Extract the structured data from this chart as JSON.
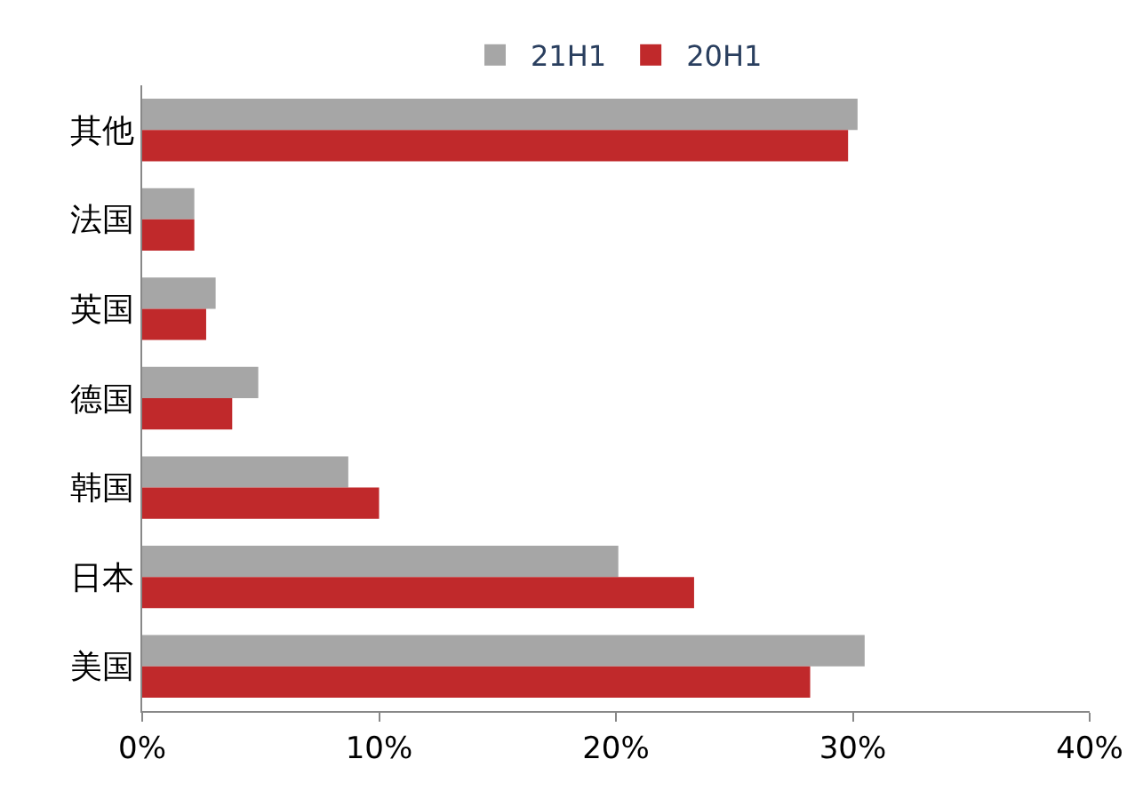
{
  "chart_data": {
    "type": "bar",
    "orientation": "horizontal",
    "categories": [
      "其他",
      "法国",
      "英国",
      "德国",
      "韩国",
      "日本",
      "美国"
    ],
    "series": [
      {
        "name": "21H1",
        "color": "#a6a6a6",
        "values": [
          30.2,
          2.2,
          3.1,
          4.9,
          8.7,
          20.1,
          30.5
        ]
      },
      {
        "name": "20H1",
        "color": "#c0292b",
        "values": [
          29.8,
          2.2,
          2.7,
          3.8,
          10.0,
          23.3,
          28.2
        ]
      }
    ],
    "xlim": [
      0,
      40
    ],
    "xticks": [
      {
        "value": 0,
        "label": "0%"
      },
      {
        "value": 10,
        "label": "10%"
      },
      {
        "value": 20,
        "label": "20%"
      },
      {
        "value": 30,
        "label": "30%"
      },
      {
        "value": 40,
        "label": "40%"
      }
    ],
    "legend": "top"
  }
}
